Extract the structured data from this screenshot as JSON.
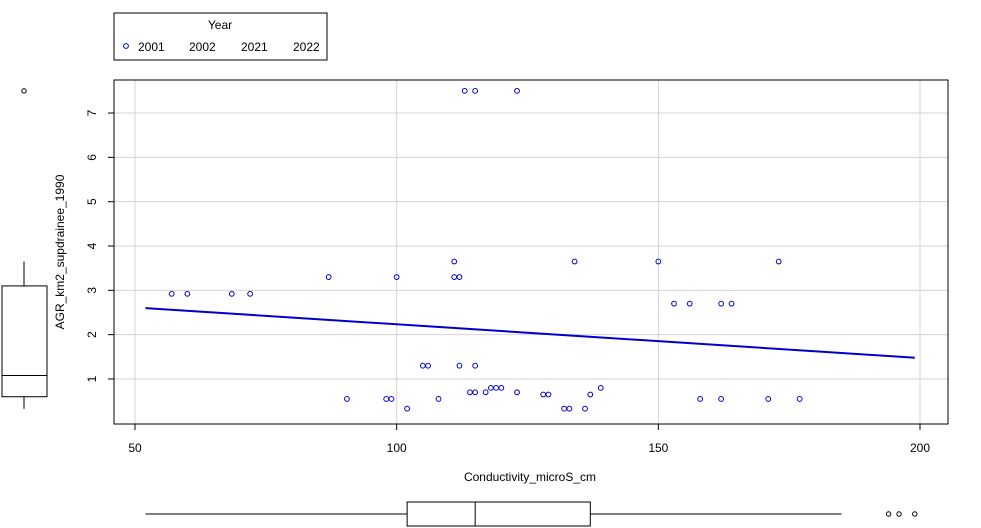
{
  "chart_data": {
    "type": "scatter",
    "xlabel": "Conductivity_microS_cm",
    "ylabel": "AGR_km2_supdrainee_1990",
    "xlim": [
      50,
      200
    ],
    "ylim": [
      0.3,
      7.5
    ],
    "x_ticks": [
      "50",
      "100",
      "150",
      "200"
    ],
    "y_ticks": [
      "1",
      "2",
      "3",
      "4",
      "5",
      "6",
      "7"
    ],
    "grid": true,
    "legend": {
      "title": "Year",
      "placement": "top-left, outside",
      "entries": [
        "2001",
        "2002",
        "2021",
        "2022"
      ]
    },
    "colors": {
      "points": "#0000cc",
      "fit": "#0000cc",
      "grid": "#d3d3d3",
      "axis": "#000000"
    },
    "series": [
      {
        "name": "2001",
        "x": [
          57,
          60,
          68.5,
          72,
          87,
          90.5,
          98,
          99,
          100,
          102,
          105,
          106,
          108,
          111,
          111,
          112,
          112,
          113,
          114,
          115,
          115,
          115,
          117,
          118,
          119,
          120,
          123,
          123,
          128,
          129,
          132,
          133,
          134,
          136,
          137,
          139,
          150,
          153,
          156,
          158,
          162,
          162,
          164,
          171,
          173,
          177
        ],
        "y": [
          2.92,
          2.92,
          2.92,
          2.92,
          3.3,
          0.55,
          0.55,
          0.55,
          3.3,
          0.33,
          1.3,
          1.3,
          0.55,
          3.65,
          3.3,
          3.3,
          1.3,
          7.5,
          0.7,
          0.7,
          1.3,
          7.5,
          0.7,
          0.8,
          0.8,
          0.8,
          0.7,
          7.5,
          0.65,
          0.65,
          0.33,
          0.33,
          3.65,
          0.33,
          0.65,
          0.8,
          3.65,
          2.7,
          2.7,
          0.55,
          0.55,
          2.7,
          2.7,
          0.55,
          3.65,
          0.55
        ]
      }
    ],
    "fit_line": {
      "x": [
        52,
        199
      ],
      "y": [
        2.6,
        1.48
      ]
    },
    "marginal_boxplots": {
      "y": {
        "outliers": [
          7.5
        ],
        "whisker_low": 0.33,
        "q1": 0.6,
        "median": 1.08,
        "q3": 3.1,
        "whisker_high": 3.65
      },
      "x": {
        "whisker_low": 52,
        "q1": 102,
        "median": 115,
        "q3": 137,
        "whisker_high": 185,
        "outliers": [
          194,
          196,
          199
        ]
      }
    }
  }
}
